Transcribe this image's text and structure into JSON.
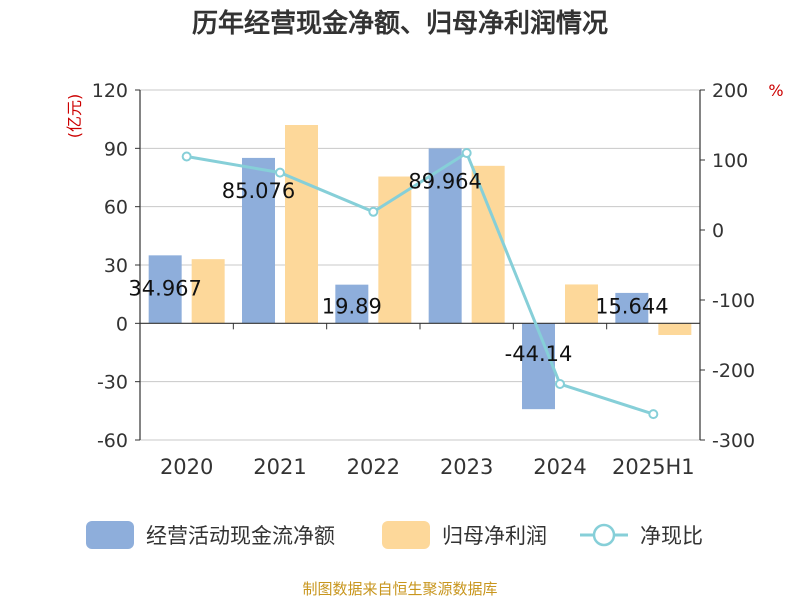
{
  "chart_data": {
    "type": "bar",
    "title": "历年经营现金净额、归母净利润情况",
    "categories": [
      "2020",
      "2021",
      "2022",
      "2023",
      "2024",
      "2025H1"
    ],
    "left_unit": "(亿元)",
    "right_unit": "%",
    "left_ylim": [
      -60,
      120
    ],
    "left_ticks": [
      120,
      90,
      60,
      30,
      0,
      -30,
      -60
    ],
    "right_ylim": [
      -300,
      200
    ],
    "right_ticks": [
      200,
      100,
      0,
      -100,
      -200,
      -300
    ],
    "series": [
      {
        "name": "经营活动现金流净额",
        "type": "bar",
        "axis": "left",
        "color": "#8eaedb",
        "values": [
          34.967,
          85.076,
          19.89,
          89.964,
          -44.14,
          15.644
        ],
        "labels": [
          "34.967",
          "85.076",
          "19.89",
          "89.964",
          "-44.14",
          "15.644"
        ]
      },
      {
        "name": "归母净利润",
        "type": "bar",
        "axis": "left",
        "color": "#fdd89a",
        "values": [
          33,
          102,
          75.5,
          81,
          20,
          -6
        ]
      },
      {
        "name": "净现比",
        "type": "line",
        "axis": "right",
        "color": "#86cfd8",
        "values": [
          105,
          82,
          26,
          110,
          -220,
          -263
        ]
      }
    ],
    "grid": true,
    "legend_position": "bottom"
  },
  "source": "制图数据来自恒生聚源数据库"
}
